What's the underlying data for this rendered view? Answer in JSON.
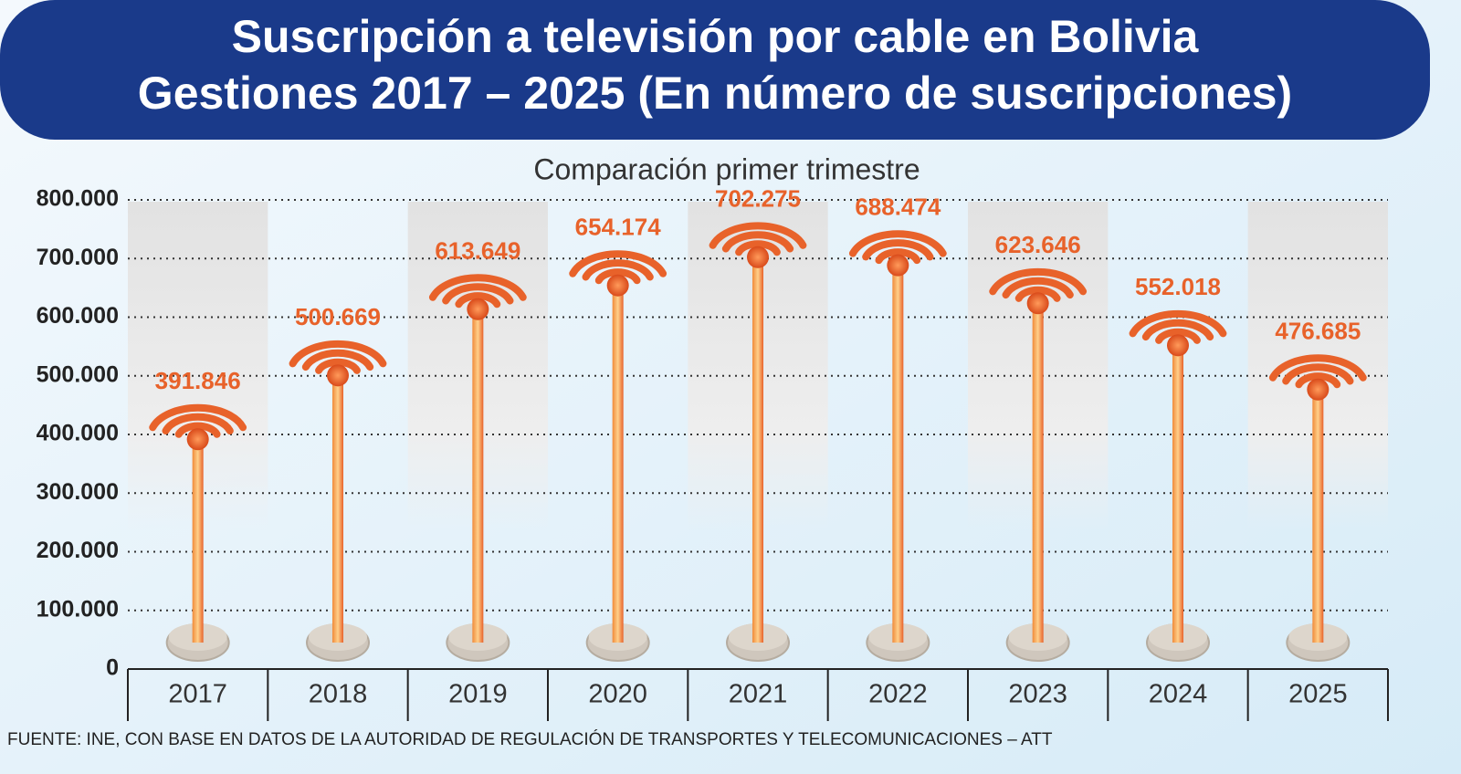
{
  "chart_data": {
    "type": "bar",
    "title": "Suscripción a televisión por cable en Bolivia",
    "subtitle": "Gestiones 2017 – 2025 (En número de suscripciones)",
    "chart_subtitle": "Comparación primer trimestre",
    "source": "FUENTE: INE, CON BASE EN DATOS DE LA AUTORIDAD DE REGULACIÓN DE TRANSPORTES Y TELECOMUNICACIONES – ATT",
    "categories": [
      "2017",
      "2018",
      "2019",
      "2020",
      "2021",
      "2022",
      "2023",
      "2024",
      "2025"
    ],
    "values": [
      391846,
      500669,
      613649,
      654174,
      702275,
      688474,
      623646,
      552018,
      476685
    ],
    "value_labels": [
      "391.846",
      "500.669",
      "613.649",
      "654.174",
      "702.275",
      "688.474",
      "623.646",
      "552.018",
      "476.685"
    ],
    "color": "#e8622a",
    "ylim": [
      0,
      800000
    ],
    "yticks": [
      0,
      {
        "value": 100000,
        "label": "100.000"
      },
      {
        "value": 200000,
        "label": "200.000"
      },
      {
        "value": 300000,
        "label": "300.000"
      },
      {
        "value": 400000,
        "label": "400.000"
      },
      {
        "value": 500000,
        "label": "500.000"
      },
      {
        "value": 600000,
        "label": "600.000"
      },
      {
        "value": 700000,
        "label": "700.000"
      },
      {
        "value": 800000,
        "label": "800.000"
      }
    ],
    "grid": true
  }
}
